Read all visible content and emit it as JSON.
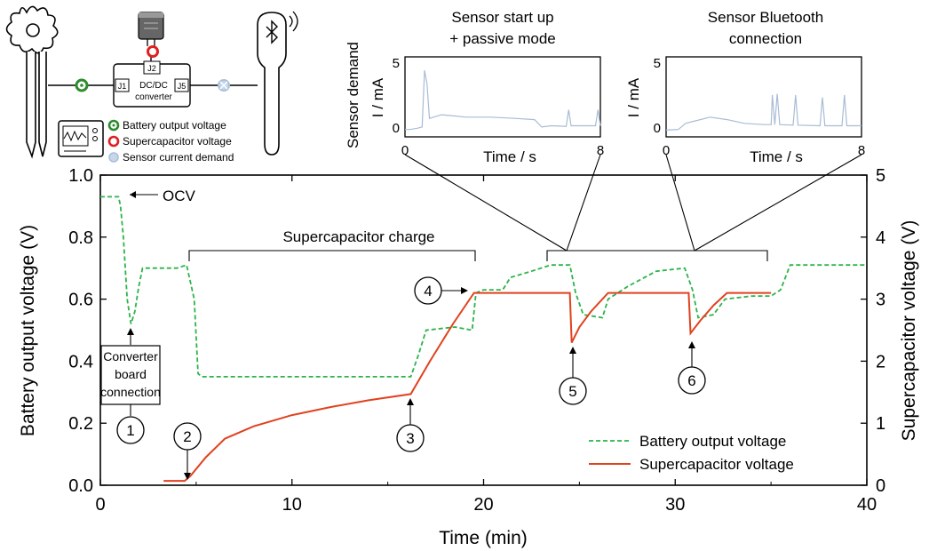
{
  "chart_data": {
    "type": "line",
    "x_axis": {
      "label": "Time (min)",
      "range": [
        0,
        40
      ],
      "ticks": [
        0,
        10,
        20,
        30,
        40
      ]
    },
    "y_left": {
      "label": "Battery output voltage (V)",
      "range": [
        0,
        1.0
      ],
      "ticks": [
        "0.0",
        "0.2",
        "0.4",
        "0.6",
        "0.8",
        "1.0"
      ]
    },
    "y_right": {
      "label": "Supercapacitor voltage (V)",
      "range": [
        0,
        5
      ],
      "ticks": [
        "0",
        "1",
        "2",
        "3",
        "4",
        "5"
      ]
    },
    "series": [
      {
        "name": "Battery output voltage",
        "axis": "left",
        "color": "#2db34a",
        "style": "dashed",
        "points": [
          [
            0,
            0.93
          ],
          [
            0.95,
            0.93
          ],
          [
            1.05,
            0.9
          ],
          [
            1.2,
            0.8
          ],
          [
            1.4,
            0.6
          ],
          [
            1.6,
            0.52
          ],
          [
            1.8,
            0.56
          ],
          [
            2.0,
            0.64
          ],
          [
            2.2,
            0.7
          ],
          [
            3.0,
            0.7
          ],
          [
            4.0,
            0.7
          ],
          [
            4.5,
            0.71
          ],
          [
            4.9,
            0.6
          ],
          [
            5.1,
            0.36
          ],
          [
            5.3,
            0.35
          ],
          [
            10,
            0.35
          ],
          [
            16.2,
            0.35
          ],
          [
            16.6,
            0.42
          ],
          [
            17.0,
            0.5
          ],
          [
            18.5,
            0.51
          ],
          [
            19.4,
            0.5
          ],
          [
            19.6,
            0.62
          ],
          [
            20.0,
            0.63
          ],
          [
            21.0,
            0.63
          ],
          [
            21.4,
            0.67
          ],
          [
            22.5,
            0.69
          ],
          [
            23.5,
            0.71
          ],
          [
            24.5,
            0.71
          ],
          [
            24.8,
            0.62
          ],
          [
            25.2,
            0.55
          ],
          [
            26.2,
            0.54
          ],
          [
            26.5,
            0.6
          ],
          [
            27.5,
            0.64
          ],
          [
            29.0,
            0.69
          ],
          [
            30.5,
            0.7
          ],
          [
            30.9,
            0.63
          ],
          [
            31.2,
            0.54
          ],
          [
            32.0,
            0.55
          ],
          [
            32.6,
            0.6
          ],
          [
            34.0,
            0.61
          ],
          [
            35.0,
            0.61
          ],
          [
            35.5,
            0.63
          ],
          [
            36.0,
            0.71
          ],
          [
            40,
            0.71
          ]
        ]
      },
      {
        "name": "Supercapacitor voltage",
        "axis": "right",
        "color": "#e0421e",
        "style": "solid",
        "points": [
          [
            3.3,
            0.07
          ],
          [
            4.4,
            0.07
          ],
          [
            4.7,
            0.15
          ],
          [
            5.5,
            0.45
          ],
          [
            6.5,
            0.75
          ],
          [
            8,
            0.95
          ],
          [
            10,
            1.13
          ],
          [
            12,
            1.26
          ],
          [
            14,
            1.37
          ],
          [
            16.2,
            1.47
          ],
          [
            17.2,
            2.0
          ],
          [
            18.4,
            2.6
          ],
          [
            19.5,
            3.1
          ],
          [
            24.5,
            3.1
          ],
          [
            24.6,
            2.3
          ],
          [
            25.0,
            2.55
          ],
          [
            25.6,
            2.8
          ],
          [
            26.5,
            3.1
          ],
          [
            30.7,
            3.1
          ],
          [
            30.8,
            2.45
          ],
          [
            31.3,
            2.65
          ],
          [
            32.0,
            2.9
          ],
          [
            32.7,
            3.1
          ],
          [
            35.0,
            3.1
          ]
        ]
      }
    ],
    "legend": {
      "placement": "bottom-right",
      "entries": [
        "Battery output voltage",
        "Supercapacitor voltage"
      ]
    },
    "annotations": {
      "ocv": "OCV",
      "charge_bracket": "Supercapacitor charge",
      "converter_box": [
        "Converter",
        "board",
        "connection"
      ],
      "markers": [
        "1",
        "2",
        "3",
        "4",
        "5",
        "6"
      ]
    },
    "insets": [
      {
        "title": [
          "Sensor start up",
          "+ passive mode"
        ],
        "xlabel": "Time / s",
        "ylabel": "I / mA",
        "outer_ylabel": "Sensor demand",
        "x_ticks": [
          "0",
          "8"
        ],
        "y_ticks": [
          "0",
          "5"
        ],
        "x_range": [
          0,
          8
        ],
        "y_range": [
          -0.5,
          6
        ],
        "color": "#a8bcd6",
        "points": [
          [
            0,
            0.1
          ],
          [
            0.2,
            0.1
          ],
          [
            0.5,
            0.2
          ],
          [
            0.7,
            0.3
          ],
          [
            0.8,
            4.9
          ],
          [
            0.9,
            3.8
          ],
          [
            1.0,
            1.0
          ],
          [
            1.5,
            1.3
          ],
          [
            2.5,
            1.1
          ],
          [
            3.5,
            1.1
          ],
          [
            4.5,
            1.0
          ],
          [
            5.3,
            0.9
          ],
          [
            5.6,
            0.3
          ],
          [
            6.0,
            0.4
          ],
          [
            6.6,
            0.35
          ],
          [
            6.7,
            1.7
          ],
          [
            6.8,
            0.4
          ],
          [
            7.3,
            0.4
          ],
          [
            7.8,
            0.4
          ],
          [
            7.9,
            1.7
          ],
          [
            8,
            0.4
          ]
        ]
      },
      {
        "title": [
          "Sensor Bluetooth",
          "connection"
        ],
        "xlabel": "Time / s",
        "ylabel": "I / mA",
        "x_ticks": [
          "0",
          "8"
        ],
        "y_ticks": [
          "0",
          "5"
        ],
        "x_range": [
          0,
          8
        ],
        "y_range": [
          -0.5,
          6
        ],
        "color": "#a8bcd6",
        "points": [
          [
            0,
            0.05
          ],
          [
            0.5,
            0.1
          ],
          [
            0.8,
            0.6
          ],
          [
            1.2,
            0.8
          ],
          [
            1.8,
            1.1
          ],
          [
            2.5,
            0.9
          ],
          [
            3.2,
            0.6
          ],
          [
            4.0,
            0.5
          ],
          [
            4.3,
            0.5
          ],
          [
            4.35,
            2.9
          ],
          [
            4.45,
            0.5
          ],
          [
            4.55,
            3.0
          ],
          [
            4.65,
            0.5
          ],
          [
            5.2,
            0.45
          ],
          [
            5.3,
            2.9
          ],
          [
            5.4,
            0.45
          ],
          [
            6.3,
            0.4
          ],
          [
            6.4,
            2.7
          ],
          [
            6.5,
            0.4
          ],
          [
            7.2,
            0.4
          ],
          [
            7.3,
            2.9
          ],
          [
            7.4,
            0.4
          ],
          [
            8,
            0.4
          ]
        ]
      }
    ],
    "schematic": {
      "converter_lines": [
        "DC/DC",
        "converter"
      ],
      "pins": [
        "J1",
        "J2",
        "J5"
      ],
      "legend": [
        "Battery output voltage",
        "Supercapacitor voltage",
        "Sensor current demand"
      ],
      "legend_colors": [
        "#2e8b2e",
        "#e02020",
        "#a8c0dc"
      ]
    }
  }
}
